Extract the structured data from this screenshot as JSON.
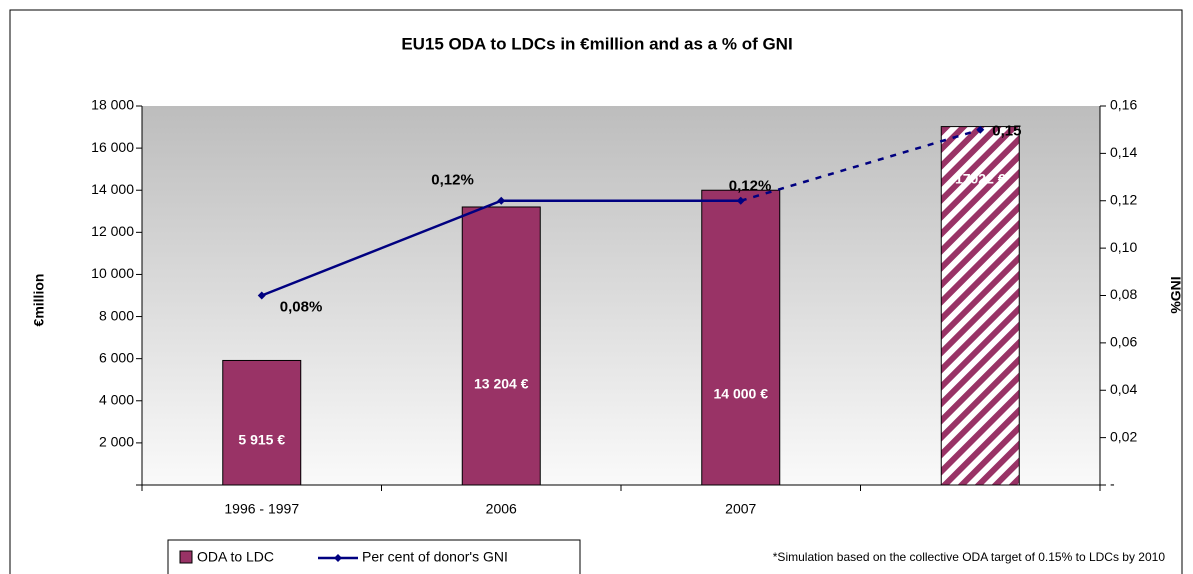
{
  "chart_data": {
    "type": "bar",
    "title": "EU15 ODA to LDCs in €million and as a % of GNI",
    "y_label": "€million",
    "y2_label": "%GNI",
    "categories": [
      "1996 - 1997",
      "2006",
      "2007",
      null
    ],
    "series": [
      {
        "name": "ODA to LDC",
        "type": "bar",
        "color": "#993366",
        "values": [
          5915,
          13204,
          14000,
          17022
        ],
        "value_labels": [
          "5 915 €",
          "13 204 €",
          "14 000 €",
          "17022 €"
        ]
      },
      {
        "name": "Per cent of donor's GNI",
        "type": "line",
        "axis": "y2",
        "color": "#000080",
        "values": [
          0.08,
          0.12,
          0.12,
          0.15
        ],
        "value_labels": [
          "0,08%",
          "0,12%",
          "0,12%",
          "0,15"
        ]
      }
    ],
    "simulated_index": 3,
    "ylim": [
      0,
      18000
    ],
    "yticks": [
      {
        "value": 2000,
        "label": "2 000"
      },
      {
        "value": 4000,
        "label": "4 000"
      },
      {
        "value": 6000,
        "label": "6 000"
      },
      {
        "value": 8000,
        "label": "8 000"
      },
      {
        "value": 10000,
        "label": "10 000"
      },
      {
        "value": 12000,
        "label": "12 000"
      },
      {
        "value": 14000,
        "label": "14 000"
      },
      {
        "value": 16000,
        "label": "16 000"
      },
      {
        "value": 18000,
        "label": "18 000"
      }
    ],
    "y2lim": [
      0,
      0.16
    ],
    "y2ticks": [
      {
        "value": 0,
        "label": "-"
      },
      {
        "value": 0.02,
        "label": "0,02"
      },
      {
        "value": 0.04,
        "label": "0,04"
      },
      {
        "value": 0.06,
        "label": "0,06"
      },
      {
        "value": 0.08,
        "label": "0,08"
      },
      {
        "value": 0.1,
        "label": "0,10"
      },
      {
        "value": 0.12,
        "label": "0,12"
      },
      {
        "value": 0.14,
        "label": "0,14"
      },
      {
        "value": 0.16,
        "label": "0,16"
      }
    ],
    "footnote": "*Simulation based on the collective ODA target of 0.15% to LDCs by 2010"
  }
}
